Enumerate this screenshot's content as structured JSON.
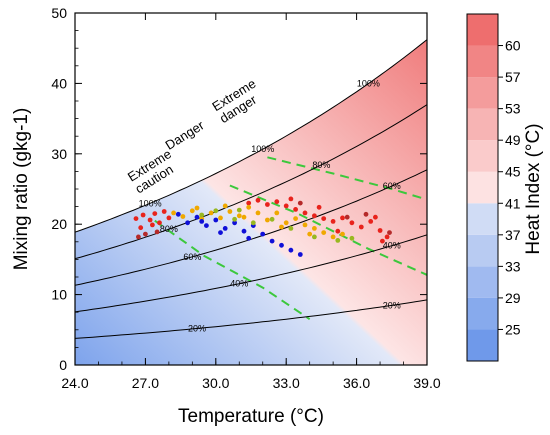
{
  "chart_data": {
    "type": "scatter",
    "xlabel": "Temperature (°C)",
    "ylabel": "Mixing ratio (gkg-1)",
    "xlim": [
      24,
      39
    ],
    "ylim": [
      0,
      50
    ],
    "xticks": [
      "24.0",
      "27.0",
      "30.0",
      "33.0",
      "36.0",
      "39.0"
    ],
    "yticks": [
      "0",
      "10",
      "20",
      "30",
      "40",
      "50"
    ],
    "colorbar": {
      "label": "Heat Index (°C)",
      "ticks": [
        "25",
        "29",
        "33",
        "37",
        "41",
        "45",
        "49",
        "53",
        "57",
        "60"
      ],
      "low_color": "#6f99ea",
      "mid_color": "#dfe6f7",
      "warm_start": "#fde2e2",
      "high_color": "#ee6e6e"
    },
    "rh_curves": [
      {
        "label": "20%",
        "rh": 0.2
      },
      {
        "label": "40%",
        "rh": 0.4
      },
      {
        "label": "60%",
        "rh": 0.6
      },
      {
        "label": "80%",
        "rh": 0.8
      },
      {
        "label": "100%",
        "rh": 1.0
      }
    ],
    "zones": [
      {
        "label": [
          "Extreme",
          "caution"
        ],
        "x": 26.4,
        "y": 26.0
      },
      {
        "label": [
          "Danger"
        ],
        "x": 28.0,
        "y": 30.5
      },
      {
        "label": [
          "Extreme",
          "danger"
        ],
        "x": 30.0,
        "y": 36.0
      }
    ],
    "series": [
      {
        "color": "#e8231c",
        "points": [
          [
            26.6,
            20.8
          ],
          [
            26.9,
            21.3
          ],
          [
            27.2,
            20.6
          ],
          [
            27.4,
            21.5
          ],
          [
            27.6,
            20.2
          ],
          [
            27.8,
            21.8
          ],
          [
            28.0,
            20.9
          ],
          [
            26.8,
            19.5
          ],
          [
            27.3,
            19.9
          ],
          [
            31.4,
            23.0
          ],
          [
            31.8,
            23.4
          ],
          [
            32.2,
            22.8
          ],
          [
            32.6,
            23.2
          ],
          [
            33.0,
            22.6
          ],
          [
            33.4,
            22.1
          ],
          [
            33.8,
            21.6
          ],
          [
            34.2,
            21.2
          ],
          [
            34.6,
            20.8
          ],
          [
            35.0,
            20.4
          ],
          [
            35.4,
            20.9
          ],
          [
            35.8,
            20.2
          ],
          [
            36.2,
            19.6
          ],
          [
            36.6,
            20.4
          ],
          [
            37.0,
            19.1
          ],
          [
            37.3,
            18.2
          ],
          [
            35.2,
            19.0
          ],
          [
            34.4,
            22.4
          ],
          [
            33.2,
            23.6
          ],
          [
            36.8,
            21.0
          ],
          [
            37.1,
            17.6
          ]
        ]
      },
      {
        "color": "#f0a800",
        "points": [
          [
            28.2,
            21.6
          ],
          [
            28.6,
            21.1
          ],
          [
            29.0,
            21.9
          ],
          [
            29.4,
            20.8
          ],
          [
            29.8,
            21.6
          ],
          [
            30.2,
            20.9
          ],
          [
            30.6,
            21.8
          ],
          [
            31.0,
            21.2
          ],
          [
            31.4,
            22.4
          ],
          [
            31.8,
            21.6
          ],
          [
            32.2,
            20.6
          ],
          [
            32.6,
            21.6
          ],
          [
            33.0,
            20.2
          ],
          [
            33.4,
            20.8
          ],
          [
            33.8,
            19.9
          ],
          [
            34.2,
            19.4
          ],
          [
            34.6,
            18.8
          ],
          [
            35.0,
            18.2
          ],
          [
            35.4,
            18.6
          ],
          [
            29.2,
            22.3
          ],
          [
            30.4,
            22.6
          ],
          [
            31.2,
            21.0
          ],
          [
            32.8,
            19.6
          ],
          [
            34.0,
            18.6
          ]
        ]
      },
      {
        "color": "#1010d8",
        "points": [
          [
            28.4,
            21.4
          ],
          [
            28.8,
            20.2
          ],
          [
            29.2,
            21.0
          ],
          [
            29.6,
            19.8
          ],
          [
            30.0,
            20.6
          ],
          [
            30.4,
            19.4
          ],
          [
            30.8,
            20.2
          ],
          [
            31.2,
            19.0
          ],
          [
            31.6,
            19.8
          ],
          [
            32.0,
            18.6
          ],
          [
            32.4,
            17.6
          ],
          [
            32.8,
            17.0
          ],
          [
            33.2,
            16.3
          ],
          [
            33.6,
            15.7
          ],
          [
            31.4,
            18.0
          ],
          [
            30.2,
            18.8
          ],
          [
            29.4,
            20.4
          ]
        ]
      },
      {
        "color": "#98b820",
        "points": [
          [
            29.4,
            21.3
          ],
          [
            30.0,
            21.9
          ],
          [
            30.8,
            20.7
          ],
          [
            31.6,
            20.2
          ],
          [
            32.4,
            20.7
          ],
          [
            33.2,
            19.4
          ],
          [
            34.2,
            18.2
          ],
          [
            35.2,
            17.7
          ],
          [
            35.8,
            18.0
          ],
          [
            31.0,
            22.0
          ]
        ]
      },
      {
        "color": "#b52a2a",
        "points": [
          [
            27.0,
            18.6
          ],
          [
            27.5,
            18.9
          ],
          [
            26.7,
            18.2
          ],
          [
            33.6,
            23.0
          ],
          [
            35.6,
            21.0
          ],
          [
            36.4,
            21.4
          ],
          [
            37.4,
            18.8
          ]
        ]
      }
    ]
  }
}
